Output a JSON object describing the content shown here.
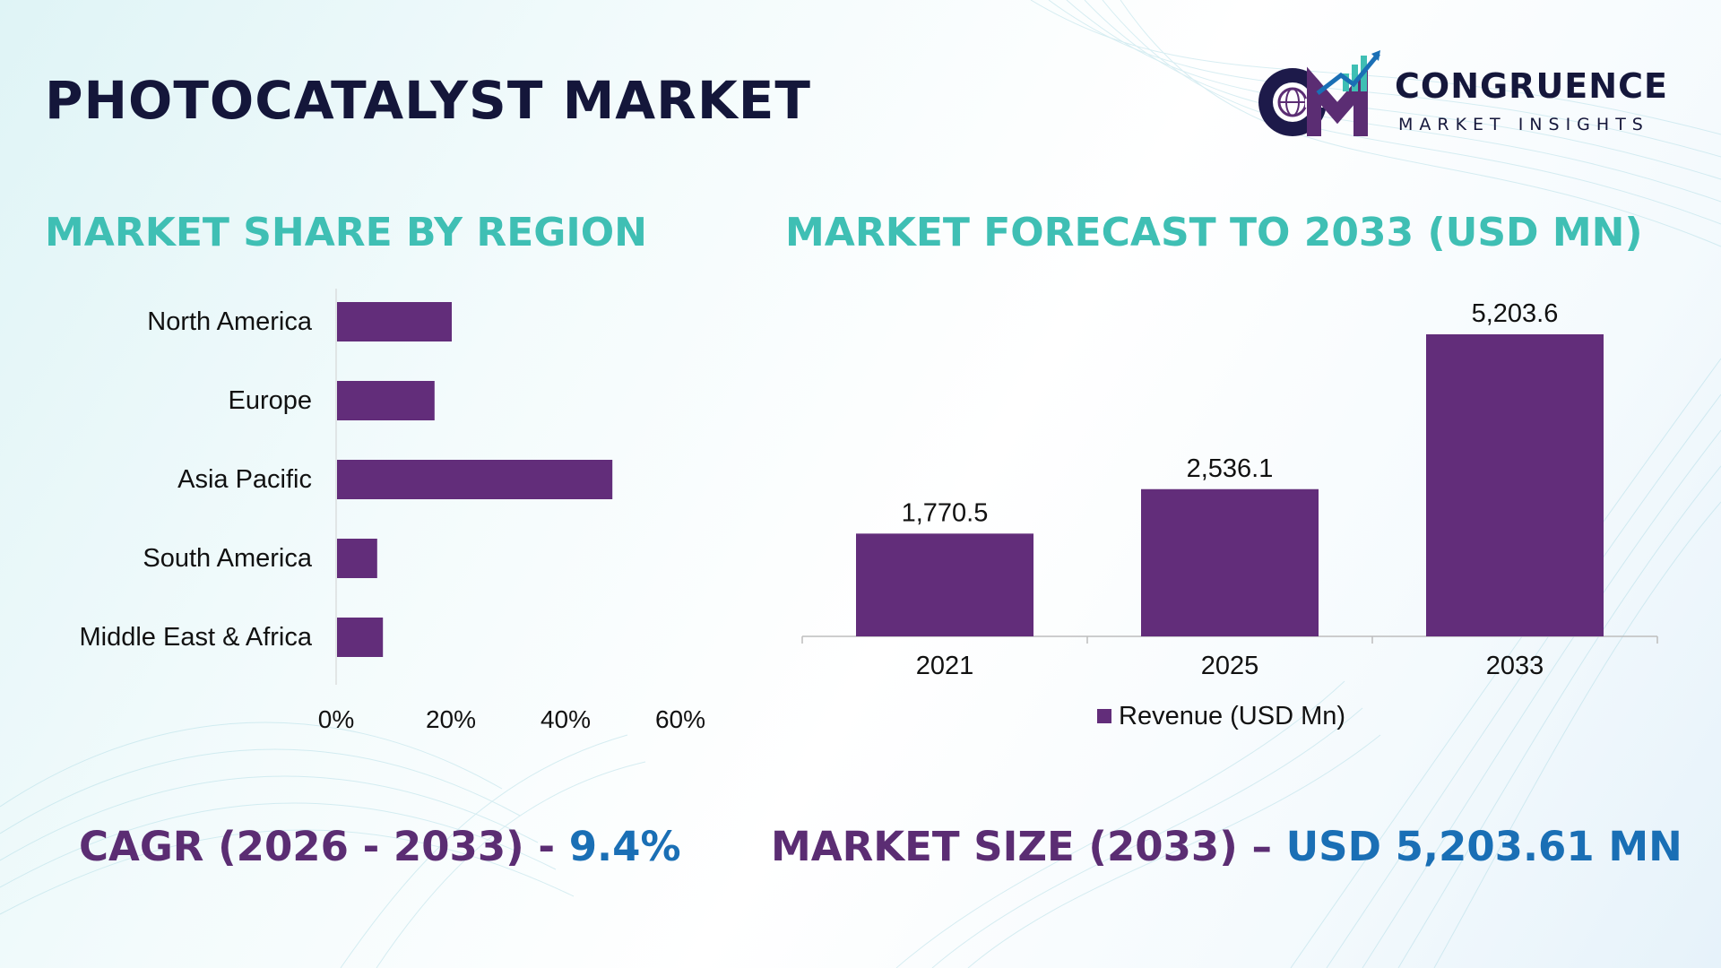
{
  "header": {
    "title": "PHOTOCATALYST MARKET"
  },
  "logo": {
    "name": "CONGRUENCE",
    "tagline": "MARKET INSIGHTS",
    "icon": "cm-globe-growth-logo"
  },
  "sections": {
    "region_title": "MARKET SHARE BY REGION",
    "forecast_title": "MARKET FORECAST TO 2033 (USD MN)"
  },
  "stats": {
    "cagr_label": "CAGR (2026 - 2033) - ",
    "cagr_value": "9.4%",
    "size_label": "MARKET SIZE (2033) – ",
    "size_value": "USD 5,203.61 MN"
  },
  "colors": {
    "bar": "#622d7a",
    "title_teal": "#3fbfb4",
    "stat_label": "#5b2d73",
    "stat_value": "#1a6fb5",
    "heading_dark": "#14163a"
  },
  "chart_data": [
    {
      "type": "bar",
      "orientation": "horizontal",
      "title": "MARKET SHARE BY REGION",
      "categories": [
        "North America",
        "Europe",
        "Asia Pacific",
        "South America",
        "Middle East & Africa"
      ],
      "values": [
        20,
        17,
        48,
        7,
        8
      ],
      "unit": "%",
      "xlim": [
        0,
        60
      ],
      "xticks": [
        "0%",
        "20%",
        "40%",
        "60%"
      ],
      "grid": false
    },
    {
      "type": "bar",
      "orientation": "vertical",
      "title": "MARKET FORECAST TO 2033 (USD MN)",
      "categories": [
        "2021",
        "2025",
        "2033"
      ],
      "series": [
        {
          "name": "Revenue (USD Mn)",
          "values": [
            1770.5,
            2536.1,
            5203.6
          ],
          "labels": [
            "1,770.5",
            "2,536.1",
            "5,203.6"
          ]
        }
      ],
      "ylim": [
        0,
        5203.6
      ],
      "legend": "bottom-center",
      "grid": false
    }
  ]
}
